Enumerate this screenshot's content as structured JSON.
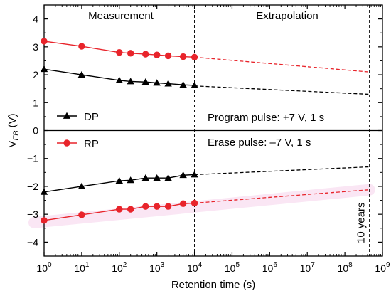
{
  "chart_data": {
    "type": "line",
    "xlabel": "Retention time (s)",
    "ylabel": "V",
    "ylabel_sub": "FB",
    "ylabel_unit": "(V)",
    "x_scale": "log",
    "xlim": [
      1,
      1000000000
    ],
    "ylim": [
      -4.5,
      4.5
    ],
    "x_ticks": [
      {
        "value": 1,
        "base": "10",
        "exp": "0"
      },
      {
        "value": 10,
        "base": "10",
        "exp": "1"
      },
      {
        "value": 100,
        "base": "10",
        "exp": "2"
      },
      {
        "value": 1000,
        "base": "10",
        "exp": "3"
      },
      {
        "value": 10000,
        "base": "10",
        "exp": "4"
      },
      {
        "value": 100000,
        "base": "10",
        "exp": "5"
      },
      {
        "value": 1000000,
        "base": "10",
        "exp": "6"
      },
      {
        "value": 10000000,
        "base": "10",
        "exp": "7"
      },
      {
        "value": 100000000,
        "base": "10",
        "exp": "8"
      },
      {
        "value": 1000000000,
        "base": "10",
        "exp": "9"
      }
    ],
    "y_ticks": [
      "-4",
      "-3",
      "-2",
      "-1",
      "0",
      "1",
      "2",
      "3",
      "4"
    ],
    "region_labels": {
      "measurement": "Measurement",
      "extrapolation": "Extrapolation"
    },
    "vlines": [
      {
        "x": 10000
      },
      {
        "x": 450000000,
        "label": "10 years"
      }
    ],
    "annotations": {
      "program": "Program pulse: +7 V, 1 s",
      "erase": "Erase pulse: –7 V, 1 s"
    },
    "legend": [
      {
        "name": "DP",
        "color": "#000000",
        "marker": "triangle"
      },
      {
        "name": "RP",
        "color": "#e8242b",
        "marker": "circle"
      }
    ],
    "series": [
      {
        "name": "DP",
        "branch": "program",
        "color": "#000000",
        "marker": "triangle",
        "x": [
          1,
          10,
          100,
          200,
          500,
          1000,
          2000,
          5000,
          10000
        ],
        "y": [
          2.2,
          2.0,
          1.8,
          1.76,
          1.74,
          1.71,
          1.68,
          1.64,
          1.62
        ],
        "extrapolation": {
          "x": [
            10000,
            450000000
          ],
          "y": [
            1.6,
            1.3
          ]
        }
      },
      {
        "name": "RP",
        "branch": "program",
        "color": "#e8242b",
        "marker": "circle",
        "x": [
          1,
          10,
          100,
          200,
          500,
          1000,
          2000,
          5000,
          10000
        ],
        "y": [
          3.2,
          3.02,
          2.8,
          2.77,
          2.74,
          2.71,
          2.68,
          2.65,
          2.63
        ],
        "extrapolation": {
          "x": [
            10000,
            450000000
          ],
          "y": [
            2.63,
            2.1
          ]
        }
      },
      {
        "name": "DP",
        "branch": "erase",
        "color": "#000000",
        "marker": "triangle",
        "x": [
          1,
          10,
          100,
          200,
          500,
          1000,
          2000,
          5000,
          10000
        ],
        "y": [
          -2.2,
          -2.0,
          -1.8,
          -1.78,
          -1.7,
          -1.7,
          -1.7,
          -1.6,
          -1.58
        ],
        "extrapolation": {
          "x": [
            10000,
            450000000
          ],
          "y": [
            -1.58,
            -1.3
          ]
        }
      },
      {
        "name": "RP",
        "branch": "erase",
        "color": "#e8242b",
        "marker": "circle",
        "x": [
          1,
          10,
          100,
          200,
          500,
          1000,
          2000,
          5000,
          10000
        ],
        "y": [
          -3.22,
          -3.02,
          -2.82,
          -2.82,
          -2.72,
          -2.72,
          -2.72,
          -2.62,
          -2.6
        ],
        "extrapolation": {
          "x": [
            10000,
            450000000
          ],
          "y": [
            -2.6,
            -2.12
          ]
        }
      }
    ]
  }
}
